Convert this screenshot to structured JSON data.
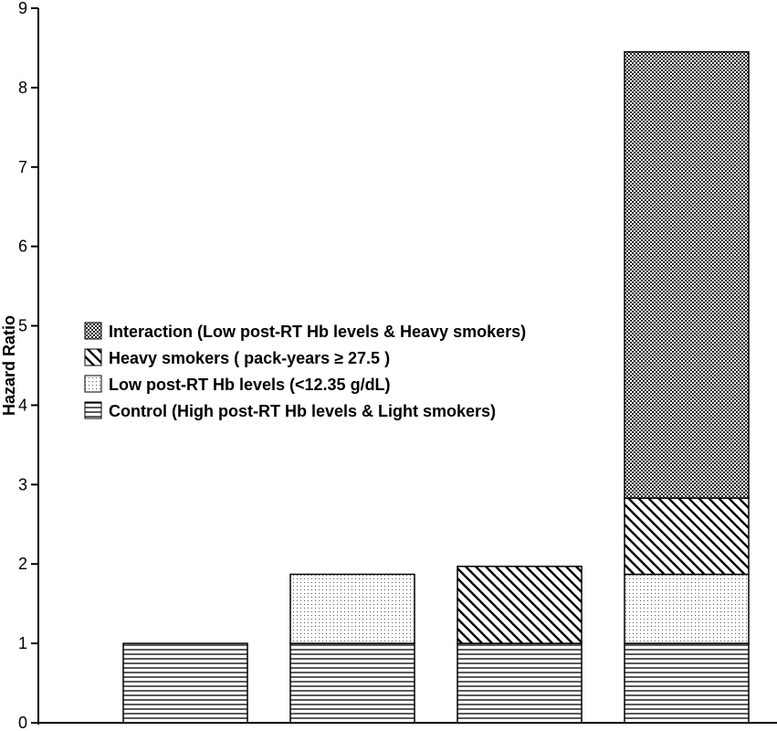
{
  "chart_data": {
    "type": "bar",
    "stacked": true,
    "title": "",
    "xlabel": "",
    "ylabel": "Hazard Ratio",
    "ylim": [
      0,
      9
    ],
    "yticks": [
      0,
      1,
      2,
      3,
      4,
      5,
      6,
      7,
      8,
      9
    ],
    "categories": [
      "",
      "",
      "",
      ""
    ],
    "grid": false,
    "legend_position": "middle-left",
    "series": [
      {
        "name": "Control (High post-RT Hb levels & Light smokers)",
        "pattern": "horizontal-lines",
        "values": [
          1.0,
          1.0,
          1.0,
          1.0
        ]
      },
      {
        "name": "Low post-RT Hb levels (<12.35 g/dL)",
        "pattern": "dots",
        "values": [
          0,
          0.87,
          0,
          0.87
        ]
      },
      {
        "name": "Heavy smokers ( pack-years ≥ 27.5 )",
        "pattern": "diagonal-lines",
        "values": [
          0,
          0,
          0.97,
          0.96
        ]
      },
      {
        "name": "Interaction (Low post-RT Hb levels & Heavy smokers)",
        "pattern": "crosshatch",
        "values": [
          0,
          0,
          0,
          5.62
        ]
      }
    ],
    "legend_order": [
      3,
      2,
      1,
      0
    ],
    "colors": {
      "ink": "#000000",
      "background": "#ffffff"
    }
  }
}
